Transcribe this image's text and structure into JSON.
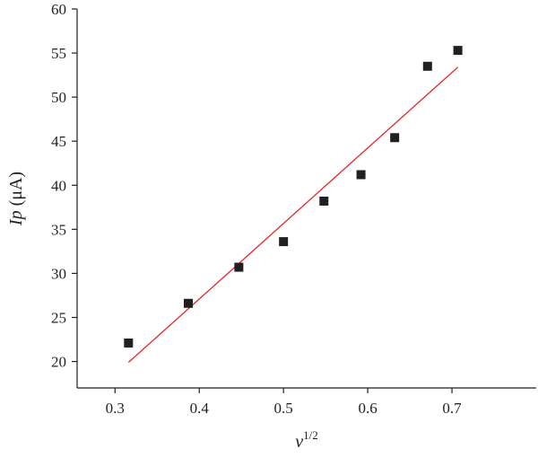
{
  "chart_data": {
    "type": "scatter",
    "xlabel": "v",
    "xlabel_sup": "1/2",
    "ylabel_main": "Ip",
    "ylabel_unit": "(μA)",
    "xlim": [
      0.255,
      0.8
    ],
    "ylim": [
      17,
      60
    ],
    "x_ticks": [
      0.3,
      0.4,
      0.5,
      0.6,
      0.7
    ],
    "y_ticks": [
      20,
      25,
      30,
      35,
      40,
      45,
      50,
      55,
      60
    ],
    "grid": false,
    "points": {
      "x": [
        0.316,
        0.387,
        0.447,
        0.5,
        0.548,
        0.592,
        0.632,
        0.671,
        0.707
      ],
      "y": [
        22.1,
        26.6,
        30.7,
        33.6,
        38.2,
        41.2,
        45.4,
        53.5,
        55.3
      ],
      "marker": "square",
      "color": "#231f20"
    },
    "fit_line": {
      "x": [
        0.316,
        0.707
      ],
      "y": [
        19.9,
        53.4
      ],
      "color": "#e3262b"
    }
  }
}
